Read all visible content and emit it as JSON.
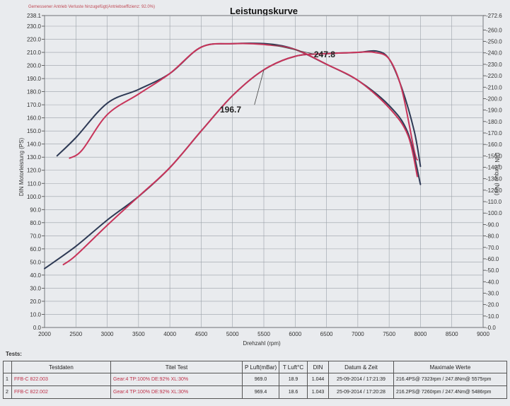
{
  "chart": {
    "title": "Leistungskurve",
    "note": "Gemessener Antrieb Verluste hinzugefügt(Antriebseffizienz: 92.0%)",
    "xlabel": "Drehzahl (rpm)",
    "ylabel_left": "DIN Motorleistung (PS)",
    "ylabel_right": "DIN Torque (Nm)"
  },
  "chart_data": {
    "type": "line",
    "title": "Leistungskurve",
    "xlabel": "Drehzahl (rpm)",
    "ylabel": "DIN Motorleistung (PS)",
    "y2label": "DIN Torque (Nm)",
    "xlim": [
      2000,
      9000
    ],
    "ylim": [
      0,
      238.1
    ],
    "y2lim": [
      0,
      272.6
    ],
    "x_ticks": [
      "2000",
      "2500",
      "3000",
      "3500",
      "4000",
      "4500",
      "5000",
      "5500",
      "6000",
      "6500",
      "7000",
      "7500",
      "8000",
      "8500",
      "9000"
    ],
    "y_ticks": [
      "0.0",
      "10.0",
      "20.0",
      "30.0",
      "40.0",
      "50.0",
      "60.0",
      "70.0",
      "80.0",
      "90.0",
      "100.0",
      "110.0",
      "120.0",
      "130.0",
      "140.0",
      "150.0",
      "160.0",
      "170.0",
      "180.0",
      "190.0",
      "200.0",
      "210.0",
      "220.0",
      "230.0",
      "238.1"
    ],
    "y2_ticks": [
      "0.0",
      "10.0",
      "20.0",
      "30.0",
      "40.0",
      "50.0",
      "60.0",
      "70.0",
      "80.0",
      "90.0",
      "100.0",
      "110.0",
      "120.0",
      "130.0",
      "140.0",
      "150.0",
      "160.0",
      "170.0",
      "180.0",
      "190.0",
      "200.0",
      "210.0",
      "220.0",
      "230.0",
      "240.0",
      "250.0",
      "260.0",
      "272.6"
    ],
    "annotations": [
      "196.7",
      "247.8"
    ],
    "grid": true,
    "series": [
      {
        "name": "FFB-C 822.003",
        "color": "#2e3a55",
        "axis": "left",
        "kind": "power",
        "points": [
          [
            2000,
            45
          ],
          [
            2500,
            62
          ],
          [
            3000,
            82
          ],
          [
            3500,
            100
          ],
          [
            4000,
            122
          ],
          [
            4500,
            150
          ],
          [
            5000,
            177
          ],
          [
            5500,
            196.7
          ],
          [
            6000,
            207
          ],
          [
            6500,
            209
          ],
          [
            7000,
            210
          ],
          [
            7300,
            211
          ],
          [
            7500,
            205
          ],
          [
            7700,
            183
          ],
          [
            7900,
            150
          ],
          [
            8000,
            123
          ]
        ]
      },
      {
        "name": "FFB-C 822.002",
        "color": "#c8345a",
        "axis": "left",
        "kind": "power",
        "points": [
          [
            2300,
            48
          ],
          [
            2500,
            55
          ],
          [
            3000,
            78
          ],
          [
            3500,
            100
          ],
          [
            4000,
            122
          ],
          [
            4500,
            150
          ],
          [
            5000,
            177
          ],
          [
            5500,
            196.7
          ],
          [
            6000,
            207
          ],
          [
            6500,
            209
          ],
          [
            7000,
            210
          ],
          [
            7260,
            210
          ],
          [
            7500,
            205
          ],
          [
            7700,
            182
          ],
          [
            7900,
            135
          ],
          [
            7950,
            128
          ]
        ]
      },
      {
        "name": "FFB-C 822.003",
        "color": "#2e3a55",
        "axis": "right",
        "kind": "torque",
        "points": [
          [
            2200,
            150
          ],
          [
            2500,
            166
          ],
          [
            3000,
            196
          ],
          [
            3500,
            208
          ],
          [
            4000,
            222
          ],
          [
            4500,
            245
          ],
          [
            5000,
            248
          ],
          [
            5575,
            247.8
          ],
          [
            6000,
            243
          ],
          [
            6500,
            230
          ],
          [
            7000,
            216
          ],
          [
            7500,
            194
          ],
          [
            7800,
            170
          ],
          [
            8000,
            125
          ]
        ]
      },
      {
        "name": "FFB-C 822.002",
        "color": "#c8345a",
        "axis": "right",
        "kind": "torque",
        "points": [
          [
            2400,
            148
          ],
          [
            2600,
            155
          ],
          [
            3000,
            186
          ],
          [
            3500,
            204
          ],
          [
            4000,
            222
          ],
          [
            4500,
            245
          ],
          [
            5000,
            248
          ],
          [
            5486,
            247.4
          ],
          [
            6000,
            243
          ],
          [
            6500,
            230
          ],
          [
            7000,
            216
          ],
          [
            7500,
            192
          ],
          [
            7800,
            168
          ],
          [
            7950,
            132
          ]
        ]
      }
    ]
  },
  "tests": {
    "label": "Tests:",
    "headers": [
      "",
      "Testdaten",
      "Titel Test",
      "P Luft(mBar)",
      "T Luft°C",
      "DIN",
      "Datum & Zeit",
      "Maximale Werte"
    ],
    "rows": [
      {
        "idx": "1",
        "name": "FFB-C 822.003",
        "title": "Gear:4 TP:100% DE:92% XL:30%",
        "p": "969.0",
        "t": "18.9",
        "din": "1.044",
        "date": "25-09-2014 / 17:21:39",
        "max": "216.4PS@ 7323rpm / 247.8Nm@ 5575rpm"
      },
      {
        "idx": "2",
        "name": "FFB-C 822.002",
        "title": "Gear:4 TP:100% DE:92% XL:30%",
        "p": "969.4",
        "t": "18.6",
        "din": "1.043",
        "date": "25-09-2014 / 17:20:28",
        "max": "216.2PS@ 7260rpm / 247.4Nm@ 5486rpm"
      }
    ]
  }
}
